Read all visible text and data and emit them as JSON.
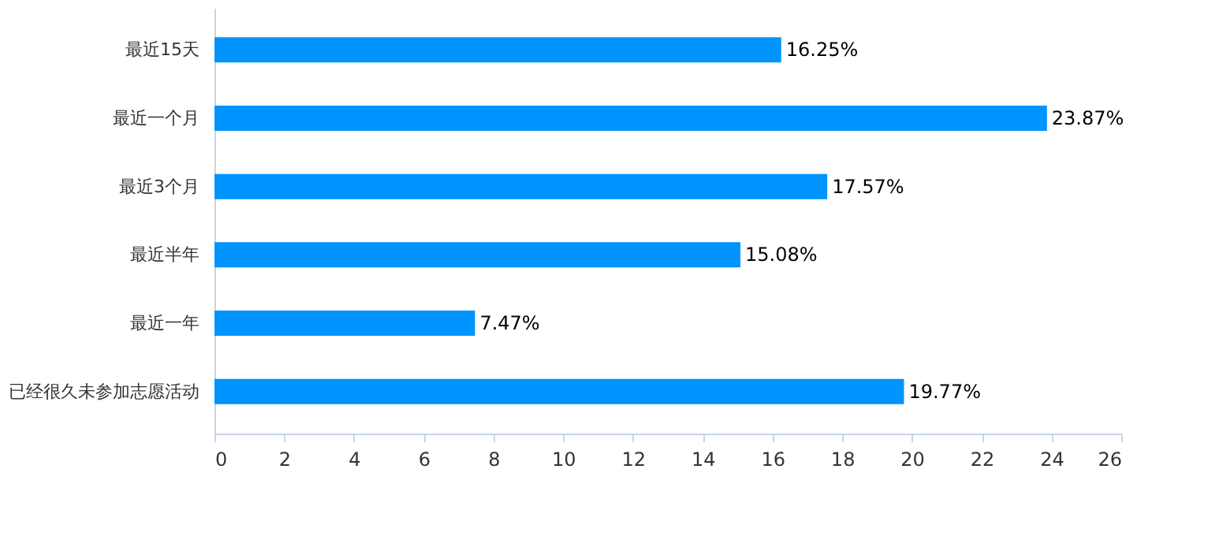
{
  "chart_data": {
    "type": "bar",
    "orientation": "horizontal",
    "categories": [
      "最近15天",
      "最近一个月",
      "最近3个月",
      "最近半年",
      "最近一年",
      "已经很久未参加志愿活动"
    ],
    "values": [
      16.25,
      23.87,
      17.57,
      15.08,
      7.47,
      19.77
    ],
    "value_labels": [
      "16.25%",
      "23.87%",
      "17.57%",
      "15.08%",
      "7.47%",
      "19.77%"
    ],
    "color": "#0094ff",
    "xlim": [
      0,
      26
    ],
    "xticks": [
      0,
      2,
      4,
      6,
      8,
      10,
      12,
      14,
      16,
      18,
      20,
      22,
      24,
      26
    ],
    "grid": false
  }
}
